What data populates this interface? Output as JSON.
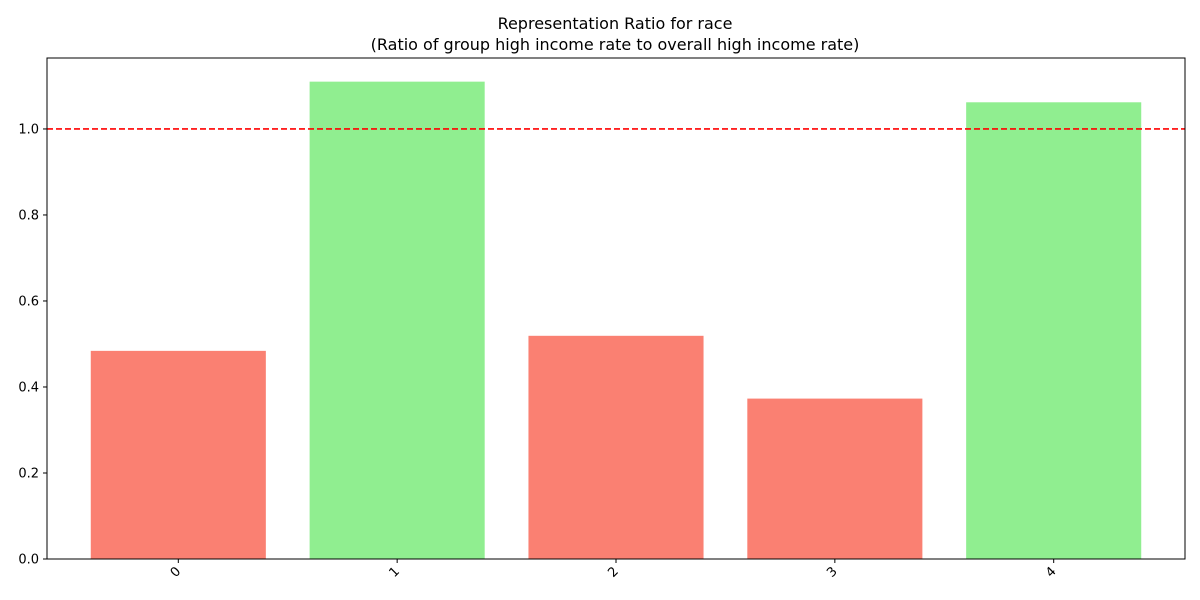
{
  "chart_data": {
    "type": "bar",
    "title": "Representation Ratio for race",
    "subtitle": "(Ratio of group high income rate to overall high income rate)",
    "xlabel": "",
    "ylabel": "",
    "categories": [
      "0",
      "1",
      "2",
      "3",
      "4"
    ],
    "values": [
      0.484,
      1.11,
      0.519,
      0.373,
      1.062
    ],
    "bar_colors": [
      "#fa8072",
      "#90ee90",
      "#fa8072",
      "#fa8072",
      "#90ee90"
    ],
    "ylim": [
      0,
      1.165
    ],
    "yticks": [
      0.0,
      0.2,
      0.4,
      0.6,
      0.8,
      1.0
    ],
    "ytick_labels": [
      "0.0",
      "0.2",
      "0.4",
      "0.6",
      "0.8",
      "1.0"
    ],
    "reference_line": {
      "value": 1.0,
      "style": "dashed",
      "color": "#ff0000"
    },
    "xtick_rotation": 45,
    "grid": false,
    "legend": "none"
  }
}
